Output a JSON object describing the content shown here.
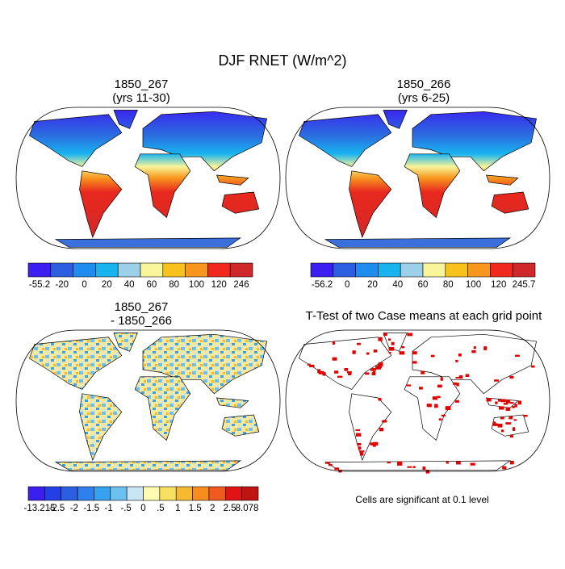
{
  "title": "DJF RNET (W/m^2)",
  "panels": [
    {
      "title": [
        "1850_267",
        "(yrs 11-30)"
      ],
      "colorbar": {
        "colors": [
          "#3b1ff0",
          "#2b5ee0",
          "#1f8cf0",
          "#19b4f0",
          "#9bd0e8",
          "#f8f59a",
          "#f8c21e",
          "#f8961e",
          "#f0281e",
          "#d0282a"
        ],
        "labels": [
          "-55.2",
          "-20",
          "0",
          "20",
          "40",
          "60",
          "80",
          "100",
          "120",
          "246"
        ]
      }
    },
    {
      "title": [
        "1850_266",
        "(yrs 6-25)"
      ],
      "colorbar": {
        "colors": [
          "#3b1ff0",
          "#2b5ee0",
          "#1f8cf0",
          "#19b4f0",
          "#9bd0e8",
          "#f8f59a",
          "#f8c21e",
          "#f8961e",
          "#f0281e",
          "#d0282a"
        ],
        "labels": [
          "-56.2",
          "0",
          "20",
          "40",
          "60",
          "80",
          "100",
          "120",
          "245.7"
        ]
      }
    },
    {
      "title": [
        "1850_267",
        "- 1850_266"
      ],
      "colorbar": {
        "colors": [
          "#3a1ff0",
          "#2340e8",
          "#2b5ee0",
          "#2e80ea",
          "#37a2f0",
          "#6cc0f0",
          "#c9e6f5",
          "#fffbb0",
          "#f8e060",
          "#f8b830",
          "#f88c1e",
          "#f05a1e",
          "#e01414",
          "#c01414"
        ],
        "labels": [
          "-13.215",
          "-2.5",
          "-2",
          "-1.5",
          "-1",
          "-.5",
          "0",
          ".5",
          "1",
          "1.5",
          "2",
          "2.5",
          "8.078"
        ]
      }
    },
    {
      "title": [
        "T-Test of two Case means at each grid point"
      ],
      "note": "Cells are significant at 0.1 level"
    }
  ]
}
